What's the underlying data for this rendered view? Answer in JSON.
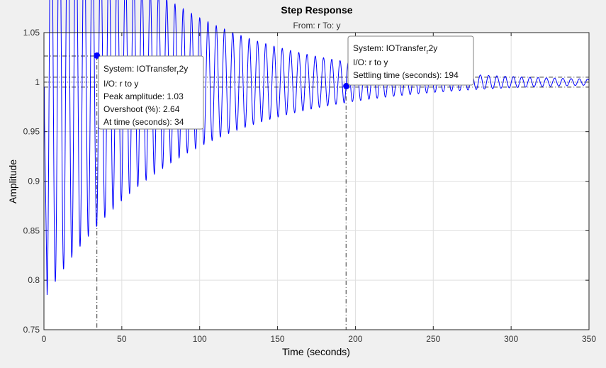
{
  "chart_data": {
    "type": "line",
    "title": "Step Response",
    "subtitle": "From: r  To: y",
    "xlabel": "Time (seconds)",
    "ylabel": "Amplitude",
    "xlim": [
      0,
      350
    ],
    "ylim": [
      0.75,
      1.05
    ],
    "xticks": [
      "0",
      "50",
      "100",
      "150",
      "200",
      "250",
      "300",
      "350"
    ],
    "yticks": [
      "0.75",
      "0.8",
      "0.85",
      "0.9",
      "0.95",
      "1",
      "1.05"
    ],
    "grid": true,
    "series": [
      {
        "system": "IOTransfer_r2y",
        "color": "#0000ff",
        "final_value": 1.0,
        "min_value": 0.785,
        "min_time": 2,
        "oscillation_period": 5.3,
        "decay_time_constant": 82
      }
    ],
    "reference_lines": {
      "final_value": 1.0,
      "settling_band": [
        0.995,
        1.005
      ],
      "peak_amplitude": 1.0264,
      "peak_time": 34,
      "settling_time": 194
    },
    "datatips": [
      {
        "name": "peak-response",
        "x": 34,
        "y": 1.0264,
        "lines": [
          "System: IOTransfer",
          "I/O: r to y",
          "Peak amplitude: 1.03",
          "Overshoot (%): 2.64",
          "At time (seconds): 34"
        ]
      },
      {
        "name": "settling-time",
        "x": 194,
        "y": 0.995,
        "lines": [
          "System: IOTransfer",
          "I/O: r to y",
          "Settling time (seconds): 194"
        ]
      }
    ]
  }
}
